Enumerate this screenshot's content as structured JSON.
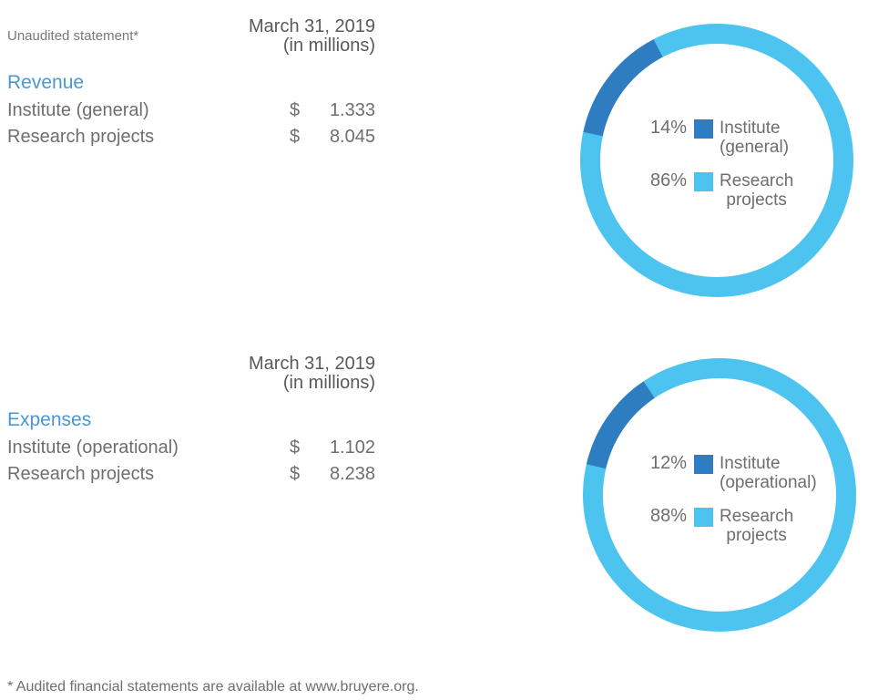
{
  "meta": {
    "statement_note": "Unaudited statement*",
    "footnote": "* Audited financial statements are available at www.bruyere.org."
  },
  "colors": {
    "institute_segment": "#2E7DC1",
    "research_segment": "#4DC4F0",
    "section_title_blue": "#4A97D3",
    "header_text": "#58595B",
    "body_text": "#6D6E71",
    "note_text": "#77787B"
  },
  "revenue": {
    "period_line1": "March 31, 2019",
    "period_line2": "(in millions)",
    "title": "Revenue",
    "rows": [
      {
        "label": "Institute (general)",
        "currency": "$",
        "value": "1.333"
      },
      {
        "label": "Research projects",
        "currency": "$",
        "value": "8.045"
      }
    ]
  },
  "expenses": {
    "period_line1": "March 31, 2019",
    "period_line2": "(in millions)",
    "title": "Expenses",
    "rows": [
      {
        "label": "Institute (operational)",
        "currency": "$",
        "value": "1.102"
      },
      {
        "label": "Research projects",
        "currency": "$",
        "value": "8.238"
      }
    ]
  },
  "chart_data": [
    {
      "type": "pie",
      "variant": "donut",
      "title": "Revenue",
      "categories": [
        "Institute (general)",
        "Research projects"
      ],
      "values": [
        14,
        86
      ],
      "unit": "percent",
      "amounts_in_millions": [
        1.333,
        8.045
      ],
      "colors": [
        "#2E7DC1",
        "#4DC4F0"
      ],
      "start_angle_deg": -78,
      "ring_thickness_px": 22,
      "legend_position": "center-inside",
      "legend": [
        {
          "pct": "14%",
          "line1": "Institute",
          "line2": "(general)"
        },
        {
          "pct": "86%",
          "line1": "Research",
          "line2": "projects"
        }
      ]
    },
    {
      "type": "pie",
      "variant": "donut",
      "title": "Expenses",
      "categories": [
        "Institute (operational)",
        "Research projects"
      ],
      "values": [
        12,
        88
      ],
      "unit": "percent",
      "amounts_in_millions": [
        1.102,
        8.238
      ],
      "colors": [
        "#2E7DC1",
        "#4DC4F0"
      ],
      "start_angle_deg": -77,
      "ring_thickness_px": 22,
      "legend_position": "center-inside",
      "legend": [
        {
          "pct": "12%",
          "line1": "Institute",
          "line2": "(operational)"
        },
        {
          "pct": "88%",
          "line1": "Research",
          "line2": "projects"
        }
      ]
    }
  ]
}
